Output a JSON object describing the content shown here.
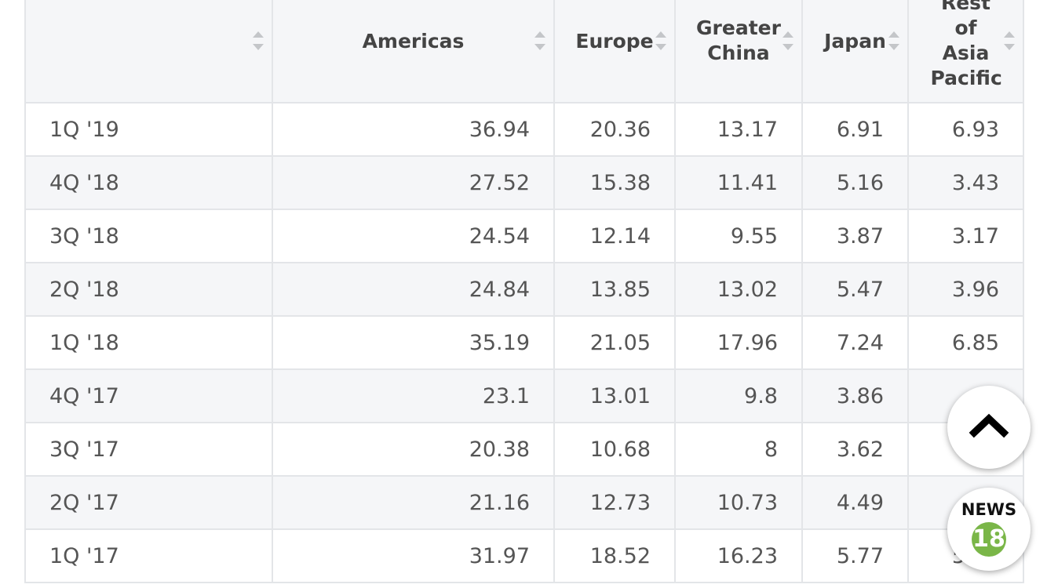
{
  "table": {
    "columns": [
      "Americas",
      "Europe",
      "Greater China",
      "Japan",
      "Rest of Asia Pacific"
    ],
    "rows": [
      [
        "1Q '19",
        "36.94",
        "20.36",
        "13.17",
        "6.91",
        "6.93"
      ],
      [
        "4Q '18",
        "27.52",
        "15.38",
        "11.41",
        "5.16",
        "3.43"
      ],
      [
        "3Q '18",
        "24.54",
        "12.14",
        "9.55",
        "3.87",
        "3.17"
      ],
      [
        "2Q '18",
        "24.84",
        "13.85",
        "13.02",
        "5.47",
        "3.96"
      ],
      [
        "1Q '18",
        "35.19",
        "21.05",
        "17.96",
        "7.24",
        "6.85"
      ],
      [
        "4Q '17",
        "23.1",
        "13.01",
        "9.8",
        "3.86",
        null
      ],
      [
        "3Q '17",
        "20.38",
        "10.68",
        "8",
        "3.62",
        null
      ],
      [
        "2Q '17",
        "21.16",
        "12.73",
        "10.73",
        "4.49",
        null
      ],
      [
        "1Q '17",
        "31.97",
        "18.52",
        "16.23",
        "5.77",
        "5.86"
      ]
    ]
  },
  "buttons": {
    "news_label": "NEWS",
    "news_count": "18"
  }
}
